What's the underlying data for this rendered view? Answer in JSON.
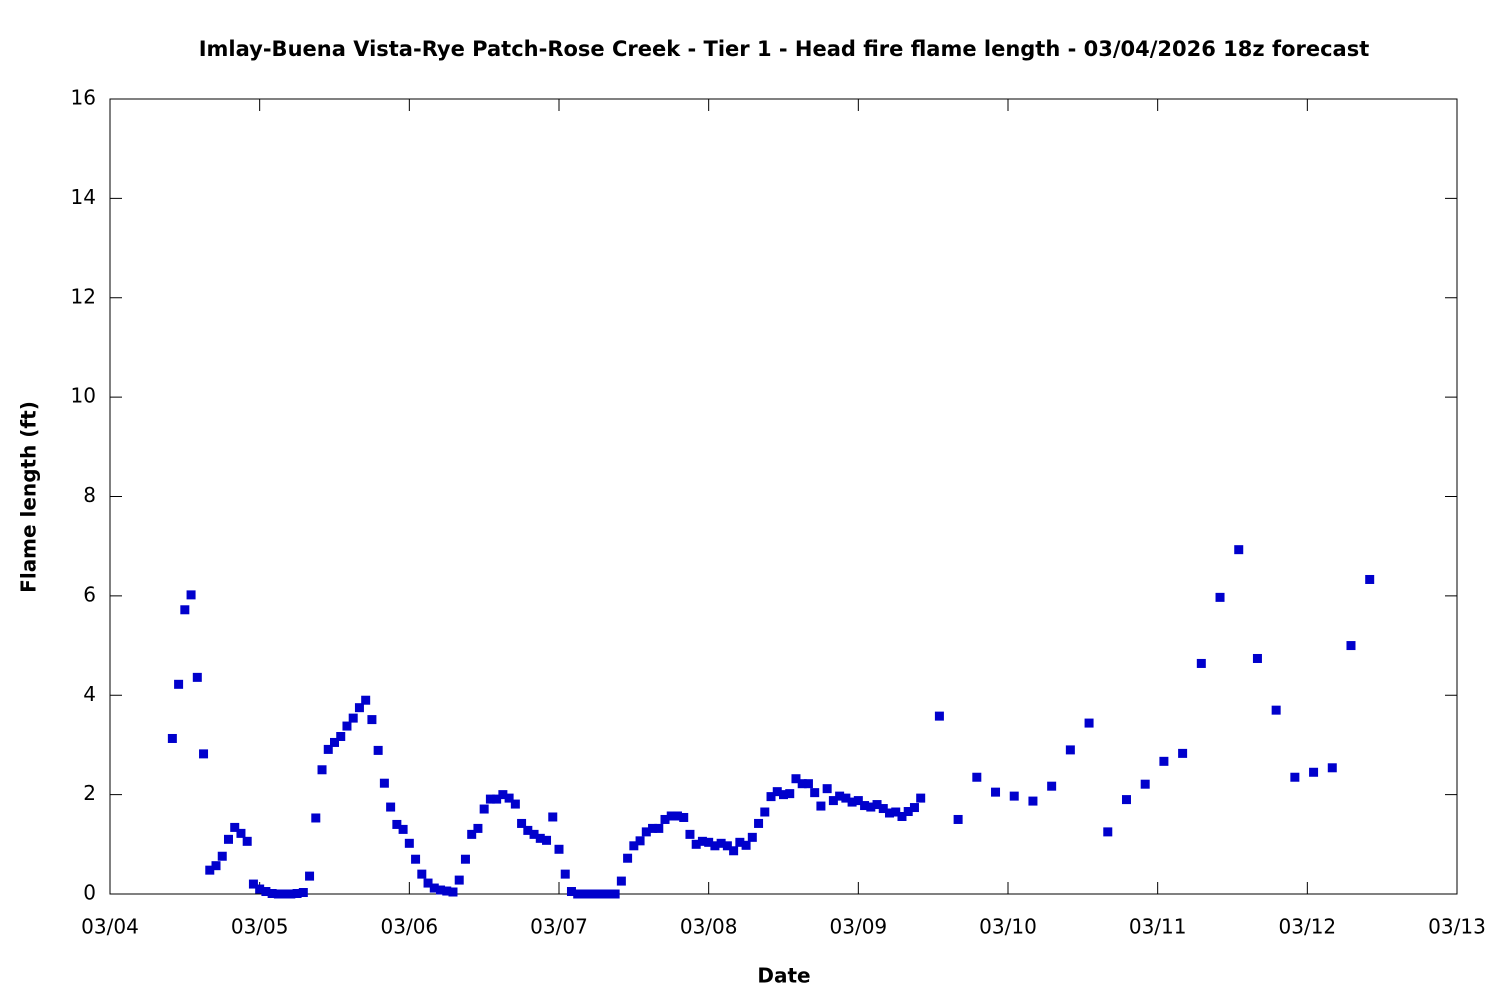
{
  "chart_data": {
    "type": "scatter",
    "title": "Imlay-Buena Vista-Rye Patch-Rose Creek - Tier 1 - Head fire flame length - 03/04/2026 18z forecast",
    "x_label": "Date",
    "y_label": "Flame length (ft)",
    "color": "#0000cc",
    "xlim": [
      0,
      216
    ],
    "ylim": [
      0,
      16
    ],
    "xticks": [
      {
        "value": 0,
        "label": "03/04"
      },
      {
        "value": 24,
        "label": "03/05"
      },
      {
        "value": 48,
        "label": "03/06"
      },
      {
        "value": 72,
        "label": "03/07"
      },
      {
        "value": 96,
        "label": "03/08"
      },
      {
        "value": 120,
        "label": "03/09"
      },
      {
        "value": 144,
        "label": "03/10"
      },
      {
        "value": 168,
        "label": "03/11"
      },
      {
        "value": 192,
        "label": "03/12"
      },
      {
        "value": 216,
        "label": "03/13"
      }
    ],
    "yticks": [
      0,
      2,
      4,
      6,
      8,
      10,
      12,
      14,
      16
    ],
    "x": [
      10,
      11,
      12,
      13,
      14,
      15,
      16,
      17,
      18,
      19,
      20,
      21,
      22,
      23,
      24,
      25,
      26,
      27,
      28,
      29,
      30,
      31,
      32,
      33,
      34,
      35,
      36,
      37,
      38,
      39,
      40,
      41,
      42,
      43,
      44,
      45,
      46,
      47,
      48,
      49,
      50,
      51,
      52,
      53,
      54,
      55,
      56,
      57,
      58,
      59,
      60,
      61,
      62,
      63,
      64,
      65,
      66,
      67,
      68,
      69,
      70,
      71,
      72,
      73,
      74,
      75,
      76,
      77,
      78,
      79,
      80,
      81,
      82,
      83,
      84,
      85,
      86,
      87,
      88,
      89,
      90,
      91,
      92,
      93,
      94,
      95,
      96,
      97,
      98,
      99,
      100,
      101,
      102,
      103,
      104,
      105,
      106,
      107,
      108,
      109,
      110,
      111,
      112,
      113,
      114,
      115,
      116,
      117,
      118,
      119,
      120,
      121,
      122,
      123,
      124,
      125,
      126,
      127,
      128,
      129,
      130,
      133,
      136,
      139,
      142,
      145,
      148,
      151,
      154,
      157,
      160,
      163,
      166,
      169,
      172,
      175,
      178,
      181,
      184,
      187,
      190,
      193,
      196,
      199,
      202
    ],
    "values": [
      3.13,
      4.22,
      5.72,
      6.02,
      4.36,
      2.82,
      0.48,
      0.57,
      0.76,
      1.1,
      1.34,
      1.22,
      1.06,
      0.2,
      0.1,
      0.05,
      0.01,
      0,
      0,
      0,
      0.01,
      0.03,
      0.36,
      1.53,
      2.5,
      2.91,
      3.05,
      3.17,
      3.38,
      3.54,
      3.75,
      3.9,
      3.51,
      2.89,
      2.23,
      1.75,
      1.4,
      1.3,
      1.02,
      0.7,
      0.4,
      0.22,
      0.12,
      0.08,
      0.06,
      0.04,
      0.28,
      0.7,
      1.2,
      1.32,
      1.71,
      1.91,
      1.91,
      2.0,
      1.93,
      1.81,
      1.42,
      1.28,
      1.2,
      1.12,
      1.08,
      1.55,
      0.9,
      0.4,
      0.05,
      0,
      0,
      0,
      0,
      0,
      0,
      0,
      0.26,
      0.72,
      0.97,
      1.07,
      1.25,
      1.32,
      1.32,
      1.5,
      1.57,
      1.57,
      1.54,
      1.2,
      1.0,
      1.06,
      1.04,
      0.97,
      1.02,
      0.97,
      0.87,
      1.04,
      0.98,
      1.14,
      1.42,
      1.65,
      1.96,
      2.06,
      2.0,
      2.02,
      2.32,
      2.22,
      2.22,
      2.04,
      1.77,
      2.12,
      1.88,
      1.97,
      1.93,
      1.85,
      1.88,
      1.78,
      1.75,
      1.8,
      1.72,
      1.63,
      1.65,
      1.56,
      1.66,
      1.74,
      1.93,
      3.58,
      1.5,
      2.35,
      2.05,
      1.97,
      1.87,
      2.17,
      2.9,
      3.44,
      1.25,
      1.9,
      2.21,
      2.67,
      2.83,
      4.64,
      5.97,
      6.93,
      4.74,
      3.7,
      2.35,
      2.45,
      2.54,
      5.0,
      6.33
    ]
  }
}
